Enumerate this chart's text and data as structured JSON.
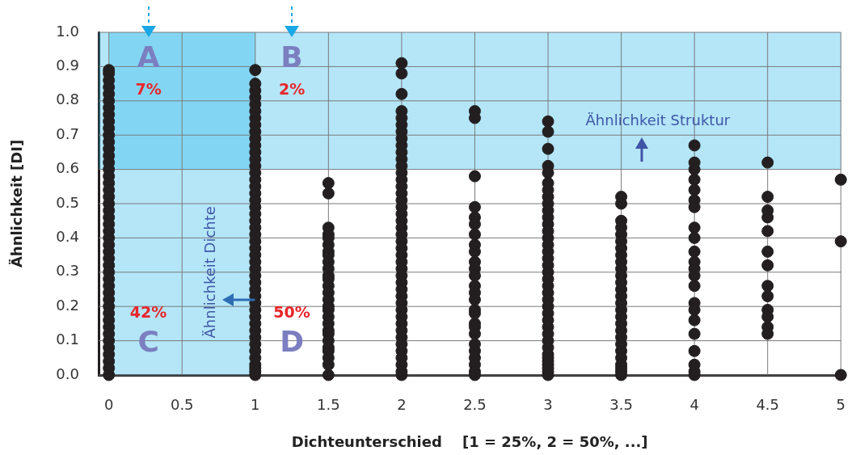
{
  "chart_data": {
    "type": "scatter",
    "xlabel": "Dichteunterschied    [1 = 25%, 2 = 50%, ...]",
    "ylabel": "Ähnlichkeit [DI]",
    "xlim": [
      -0.07,
      5.0
    ],
    "xticks": [
      0,
      0.5,
      1,
      1.5,
      2,
      2.5,
      3,
      3.5,
      4,
      4.5,
      5
    ],
    "ylim": [
      0,
      1.0
    ],
    "yticks": [
      {
        "value": 0,
        "label": "0.0"
      },
      {
        "value": 0.1,
        "label": "0.1"
      },
      {
        "value": 0.2,
        "label": "0.2"
      },
      {
        "value": 0.3,
        "label": "0.3"
      },
      {
        "value": 0.4,
        "label": "0.4"
      },
      {
        "value": 0.5,
        "label": "0.5"
      },
      {
        "value": 0.6,
        "label": "0.6"
      },
      {
        "value": 0.7,
        "label": "0.7"
      },
      {
        "value": 0.8,
        "label": "0.8"
      },
      {
        "value": 0.9,
        "label": "0.9"
      },
      {
        "value": 1.0,
        "label": "1.0"
      }
    ],
    "grid": true,
    "marker": "circle",
    "legend": false,
    "series": [
      {
        "color": "#231f20",
        "x": [
          0,
          0,
          0,
          0,
          0,
          0,
          0,
          0,
          0,
          0,
          0,
          0,
          0,
          0,
          0,
          0,
          0,
          0,
          0,
          0,
          0,
          0,
          0,
          0,
          0,
          0,
          0,
          0,
          0,
          0,
          0,
          0,
          0,
          0,
          0,
          0,
          0,
          0,
          0,
          0,
          0,
          0,
          0,
          0,
          0,
          0,
          1,
          1,
          1,
          1,
          1,
          1,
          1,
          1,
          1,
          1,
          1,
          1,
          1,
          1,
          1,
          1,
          1,
          1,
          1,
          1,
          1,
          1,
          1,
          1,
          1,
          1,
          1,
          1,
          1,
          1,
          1,
          1,
          1,
          1,
          1,
          1,
          1,
          1,
          1,
          1,
          1,
          1,
          1,
          1,
          1,
          1,
          1.5,
          1.5,
          1.5,
          1.5,
          1.5,
          1.5,
          1.5,
          1.5,
          1.5,
          1.5,
          1.5,
          1.5,
          1.5,
          1.5,
          1.5,
          1.5,
          1.5,
          1.5,
          1.5,
          1.5,
          1.5,
          1.5,
          1.5,
          1.5,
          1.5,
          1.5,
          1.5,
          2,
          2,
          2,
          2,
          2,
          2,
          2,
          2,
          2,
          2,
          2,
          2,
          2,
          2,
          2,
          2,
          2,
          2,
          2,
          2,
          2,
          2,
          2,
          2,
          2,
          2,
          2,
          2,
          2,
          2,
          2,
          2,
          2,
          2,
          2,
          2,
          2,
          2,
          2,
          2,
          2,
          2,
          2,
          2.5,
          2.5,
          2.5,
          2.5,
          2.5,
          2.5,
          2.5,
          2.5,
          2.5,
          2.5,
          2.5,
          2.5,
          2.5,
          2.5,
          2.5,
          2.5,
          2.5,
          2.5,
          2.5,
          2.5,
          2.5,
          2.5,
          2.5,
          2.5,
          2.5,
          2.5,
          3,
          3,
          3,
          3,
          3,
          3,
          3,
          3,
          3,
          3,
          3,
          3,
          3,
          3,
          3,
          3,
          3,
          3,
          3,
          3,
          3,
          3,
          3,
          3,
          3,
          3,
          3,
          3,
          3,
          3,
          3,
          3,
          3,
          3,
          3,
          3,
          3,
          3.5,
          3.5,
          3.5,
          3.5,
          3.5,
          3.5,
          3.5,
          3.5,
          3.5,
          3.5,
          3.5,
          3.5,
          3.5,
          3.5,
          3.5,
          3.5,
          3.5,
          3.5,
          3.5,
          3.5,
          3.5,
          3.5,
          3.5,
          3.5,
          3.5,
          3.5,
          3.5,
          4,
          4,
          4,
          4,
          4,
          4,
          4,
          4,
          4,
          4,
          4,
          4,
          4,
          4,
          4,
          4,
          4,
          4,
          4,
          4,
          4,
          4,
          4.5,
          4.5,
          4.5,
          4.5,
          4.5,
          4.5,
          4.5,
          4.5,
          4.5,
          4.5,
          4.5,
          4.5,
          4.5,
          5,
          5,
          5
        ],
        "values": [
          0.89,
          0.88,
          0.86,
          0.84,
          0.82,
          0.8,
          0.78,
          0.76,
          0.74,
          0.72,
          0.7,
          0.68,
          0.66,
          0.64,
          0.62,
          0.6,
          0.58,
          0.56,
          0.54,
          0.52,
          0.5,
          0.48,
          0.46,
          0.44,
          0.42,
          0.4,
          0.38,
          0.36,
          0.34,
          0.32,
          0.3,
          0.28,
          0.26,
          0.24,
          0.22,
          0.2,
          0.18,
          0.16,
          0.14,
          0.12,
          0.1,
          0.08,
          0.06,
          0.04,
          0.02,
          0.0,
          0.89,
          0.85,
          0.83,
          0.81,
          0.79,
          0.77,
          0.75,
          0.73,
          0.71,
          0.69,
          0.67,
          0.65,
          0.63,
          0.61,
          0.59,
          0.57,
          0.55,
          0.53,
          0.51,
          0.49,
          0.47,
          0.45,
          0.43,
          0.41,
          0.39,
          0.37,
          0.35,
          0.33,
          0.31,
          0.29,
          0.27,
          0.25,
          0.23,
          0.21,
          0.19,
          0.17,
          0.15,
          0.13,
          0.11,
          0.09,
          0.07,
          0.05,
          0.03,
          0.02,
          0.01,
          0.0,
          0.56,
          0.53,
          0.43,
          0.41,
          0.4,
          0.38,
          0.36,
          0.35,
          0.33,
          0.31,
          0.29,
          0.28,
          0.26,
          0.24,
          0.22,
          0.2,
          0.19,
          0.17,
          0.15,
          0.13,
          0.12,
          0.1,
          0.08,
          0.07,
          0.05,
          0.03,
          0.0,
          0.91,
          0.88,
          0.82,
          0.77,
          0.75,
          0.73,
          0.71,
          0.69,
          0.67,
          0.65,
          0.63,
          0.61,
          0.59,
          0.57,
          0.55,
          0.53,
          0.51,
          0.49,
          0.47,
          0.45,
          0.43,
          0.41,
          0.39,
          0.37,
          0.35,
          0.33,
          0.31,
          0.29,
          0.27,
          0.25,
          0.23,
          0.21,
          0.19,
          0.17,
          0.15,
          0.13,
          0.11,
          0.09,
          0.07,
          0.05,
          0.03,
          0.01,
          0.0,
          0.77,
          0.75,
          0.58,
          0.49,
          0.46,
          0.44,
          0.41,
          0.38,
          0.36,
          0.33,
          0.31,
          0.29,
          0.26,
          0.24,
          0.22,
          0.19,
          0.18,
          0.15,
          0.14,
          0.12,
          0.09,
          0.07,
          0.05,
          0.03,
          0.01,
          0.0,
          0.74,
          0.71,
          0.66,
          0.61,
          0.59,
          0.56,
          0.54,
          0.52,
          0.5,
          0.48,
          0.46,
          0.44,
          0.42,
          0.4,
          0.38,
          0.36,
          0.34,
          0.32,
          0.3,
          0.28,
          0.26,
          0.24,
          0.22,
          0.2,
          0.18,
          0.16,
          0.14,
          0.12,
          0.1,
          0.08,
          0.06,
          0.05,
          0.04,
          0.03,
          0.02,
          0.01,
          0.0,
          0.52,
          0.5,
          0.45,
          0.43,
          0.41,
          0.39,
          0.37,
          0.35,
          0.33,
          0.31,
          0.29,
          0.27,
          0.25,
          0.23,
          0.21,
          0.19,
          0.17,
          0.15,
          0.13,
          0.11,
          0.09,
          0.07,
          0.05,
          0.03,
          0.02,
          0.01,
          0.0,
          0.67,
          0.62,
          0.6,
          0.57,
          0.54,
          0.51,
          0.49,
          0.43,
          0.4,
          0.36,
          0.33,
          0.31,
          0.29,
          0.26,
          0.21,
          0.19,
          0.16,
          0.12,
          0.07,
          0.03,
          0.01,
          0.0,
          0.62,
          0.52,
          0.48,
          0.46,
          0.42,
          0.36,
          0.32,
          0.26,
          0.23,
          0.19,
          0.17,
          0.14,
          0.12,
          0.57,
          0.39,
          0.0
        ]
      }
    ],
    "bands": [
      {
        "axis": "y",
        "from": 0.6,
        "to": 1.0,
        "color": "#29b6ec"
      },
      {
        "axis": "x",
        "from": 0,
        "to": 1,
        "color": "#29b6ec"
      }
    ],
    "annotations": [
      "A",
      "B",
      "C",
      "D",
      "7%",
      "2%",
      "42%",
      "50%",
      "Ähnlichkeit Struktur",
      {
        "text": "Ähnlichkeit Dichte",
        "x": 1,
        "y": 0.22
      }
    ]
  }
}
